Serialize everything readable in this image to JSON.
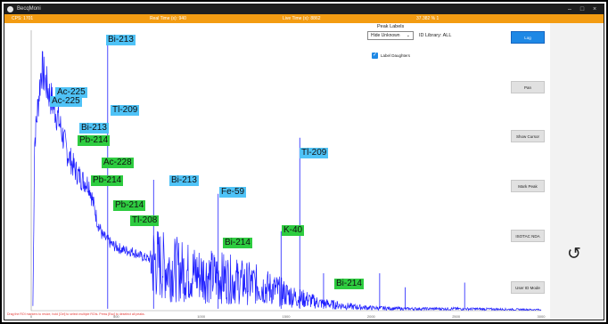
{
  "window": {
    "title": "BecqMoni"
  },
  "status": {
    "cps": "CPS: 1701",
    "real_time": "Real Time (s): 940",
    "live_time": "Live Time (s): 8862",
    "ratio": "37.382 % 1"
  },
  "peak_panel": {
    "title": "Peak Labels",
    "dropdown_value": "Hide Unknown",
    "id_library": "ID Library: ALL",
    "label_daughters": "Label Daughters",
    "label_daughters_checked": true
  },
  "buttons": {
    "log": "Log",
    "pan": "Pan",
    "show_cursor": "Show Cursor",
    "mark_peak": "Mark Peak",
    "isotac_nda": "ISOTAC NDA",
    "user_id_mode": "User ID Mode"
  },
  "peak_labels": {
    "bi213_a": "Bi-213",
    "ac225_a": "Ac-225",
    "ac225_b": "Ac-225",
    "tl209_a": "Tl-209",
    "bi213_b": "Bi-213",
    "pb214_a": "Pb-214",
    "ac228": "Ac-228",
    "pb214_b": "Pb-214",
    "bi213_c": "Bi-213",
    "fe59": "Fe-59",
    "pb214_c": "Pb-214",
    "tl208": "Tl-208",
    "tl209_b": "Tl-209",
    "k40": "K-40",
    "bi214_a": "Bi-214",
    "bi214_b": "Bi-214"
  },
  "colors": {
    "series": "#1f1fff",
    "status": "#f39c12",
    "primary_button": "#1e88e5",
    "label_blue": "#4fc3f7",
    "label_green": "#2ecc40"
  },
  "chart_data": {
    "type": "line",
    "x_ticks": [
      "0",
      "500",
      "1000",
      "1500",
      "2000",
      "2500",
      "3000"
    ],
    "series": [
      {
        "values": [
          [
            10,
            5
          ],
          [
            20,
            180
          ],
          [
            60,
            260
          ],
          [
            110,
            230
          ],
          [
            160,
            205
          ],
          [
            210,
            170
          ],
          [
            260,
            150
          ],
          [
            300,
            140
          ],
          [
            340,
            135
          ],
          [
            390,
            95
          ],
          [
            420,
            80
          ],
          [
            480,
            70
          ],
          [
            540,
            65
          ],
          [
            600,
            63
          ],
          [
            650,
            58
          ],
          [
            700,
            55
          ],
          [
            770,
            48
          ],
          [
            820,
            45
          ],
          [
            860,
            44
          ],
          [
            900,
            42
          ],
          [
            960,
            40
          ],
          [
            1020,
            38
          ],
          [
            1080,
            36
          ],
          [
            1140,
            35
          ],
          [
            1200,
            32
          ],
          [
            1260,
            30
          ],
          [
            1320,
            28
          ],
          [
            1380,
            25
          ],
          [
            1440,
            22
          ],
          [
            1500,
            18
          ],
          [
            1560,
            14
          ],
          [
            1620,
            12
          ],
          [
            1700,
            8
          ],
          [
            1800,
            6
          ],
          [
            1900,
            4
          ],
          [
            2000,
            3
          ],
          [
            2200,
            2
          ],
          [
            2500,
            2
          ],
          [
            3000,
            1
          ]
        ]
      }
    ]
  },
  "footer": {
    "text": "Drag the ROI markers to resize, hold [Ctrl] to select multiple ROIs. Press [Esc] to deselect all peaks."
  }
}
